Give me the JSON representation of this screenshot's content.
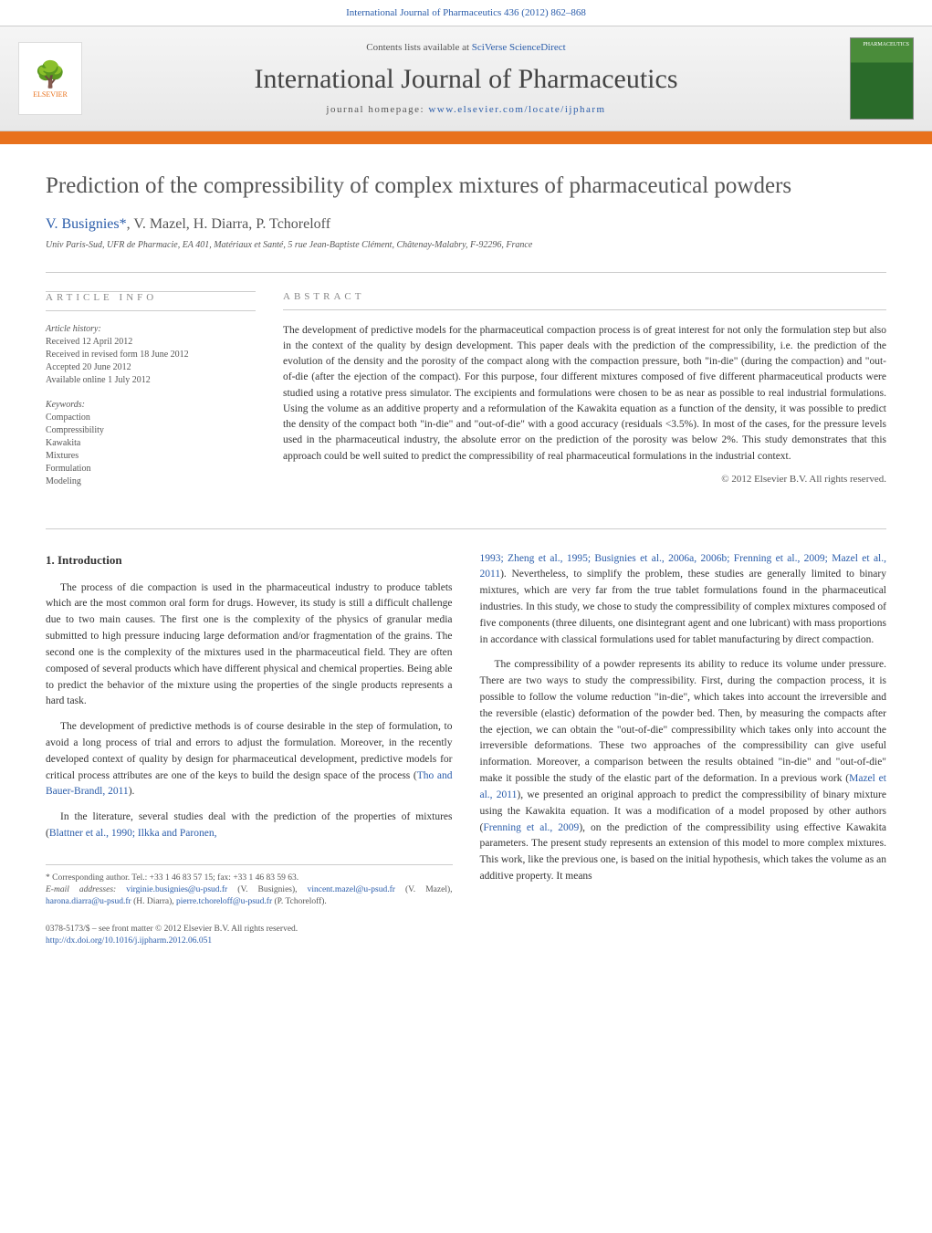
{
  "journal_ref": "International Journal of Pharmaceutics 436 (2012) 862–868",
  "contents_prefix": "Contents lists available at ",
  "contents_link": "SciVerse ScienceDirect",
  "journal_name": "International Journal of Pharmaceutics",
  "homepage_prefix": "journal homepage: ",
  "homepage_url": "www.elsevier.com/locate/ijpharm",
  "cover_text": "PHARMACEUTICS",
  "elsevier_label": "ELSEVIER",
  "article": {
    "title": "Prediction of the compressibility of complex mixtures of pharmaceutical powders",
    "authors_html": "V. Busignies",
    "author_marker": "*",
    "authors_rest": ", V. Mazel, H. Diarra, P. Tchoreloff",
    "affiliation": "Univ Paris-Sud, UFR de Pharmacie, EA 401, Matériaux et Santé, 5 rue Jean-Baptiste Clément, Châtenay-Malabry, F-92296, France"
  },
  "info": {
    "heading": "ARTICLE INFO",
    "history_label": "Article history:",
    "history": [
      "Received 12 April 2012",
      "Received in revised form 18 June 2012",
      "Accepted 20 June 2012",
      "Available online 1 July 2012"
    ],
    "keywords_label": "Keywords:",
    "keywords": [
      "Compaction",
      "Compressibility",
      "Kawakita",
      "Mixtures",
      "Formulation",
      "Modeling"
    ]
  },
  "abstract": {
    "heading": "ABSTRACT",
    "text": "The development of predictive models for the pharmaceutical compaction process is of great interest for not only the formulation step but also in the context of the quality by design development. This paper deals with the prediction of the compressibility, i.e. the prediction of the evolution of the density and the porosity of the compact along with the compaction pressure, both \"in-die\" (during the compaction) and \"out-of-die (after the ejection of the compact). For this purpose, four different mixtures composed of five different pharmaceutical products were studied using a rotative press simulator. The excipients and formulations were chosen to be as near as possible to real industrial formulations. Using the volume as an additive property and a reformulation of the Kawakita equation as a function of the density, it was possible to predict the density of the compact both \"in-die\" and \"out-of-die\" with a good accuracy (residuals <3.5%). In most of the cases, for the pressure levels used in the pharmaceutical industry, the absolute error on the prediction of the porosity was below 2%. This study demonstrates that this approach could be well suited to predict the compressibility of real pharmaceutical formulations in the industrial context.",
    "copyright": "© 2012 Elsevier B.V. All rights reserved."
  },
  "intro": {
    "heading": "1. Introduction",
    "p1": "The process of die compaction is used in the pharmaceutical industry to produce tablets which are the most common oral form for drugs. However, its study is still a difficult challenge due to two main causes. The first one is the complexity of the physics of granular media submitted to high pressure inducing large deformation and/or fragmentation of the grains. The second one is the complexity of the mixtures used in the pharmaceutical field. They are often composed of several products which have different physical and chemical properties. Being able to predict the behavior of the mixture using the properties of the single products represents a hard task.",
    "p2_a": "The development of predictive methods is of course desirable in the step of formulation, to avoid a long process of trial and errors to adjust the formulation. Moreover, in the recently developed context of quality by design for pharmaceutical development, predictive models for critical process attributes are one of the keys to build the design space of the process (",
    "p2_cite": "Tho and Bauer-Brandl, 2011",
    "p2_b": ").",
    "p3_a": "In the literature, several studies deal with the prediction of the properties of mixtures (",
    "p3_cite": "Blattner et al., 1990; Ilkka and Paronen,",
    "col2_cite": "1993; Zheng et al., 1995; Busignies et al., 2006a, 2006b; Frenning et al., 2009; Mazel et al., 2011",
    "col2_p1": "). Nevertheless, to simplify the problem, these studies are generally limited to binary mixtures, which are very far from the true tablet formulations found in the pharmaceutical industries. In this study, we chose to study the compressibility of complex mixtures composed of five components (three diluents, one disintegrant agent and one lubricant) with mass proportions in accordance with classical formulations used for tablet manufacturing by direct compaction.",
    "col2_p2_a": "The compressibility of a powder represents its ability to reduce its volume under pressure. There are two ways to study the compressibility. First, during the compaction process, it is possible to follow the volume reduction \"in-die\", which takes into account the irreversible and the reversible (elastic) deformation of the powder bed. Then, by measuring the compacts after the ejection, we can obtain the \"out-of-die\" compressibility which takes only into account the irreversible deformations. These two approaches of the compressibility can give useful information. Moreover, a comparison between the results obtained \"in-die\" and \"out-of-die\" make it possible the study of the elastic part of the deformation. In a previous work (",
    "col2_p2_cite1": "Mazel et al., 2011",
    "col2_p2_b": "), we presented an original approach to predict the compressibility of binary mixture using the Kawakita equation. It was a modification of a model proposed by other authors (",
    "col2_p2_cite2": "Frenning et al., 2009",
    "col2_p2_c": "), on the prediction of the compressibility using effective Kawakita parameters. The present study represents an extension of this model to more complex mixtures. This work, like the previous one, is based on the initial hypothesis, which takes the volume as an additive property. It means"
  },
  "footnotes": {
    "corr": "* Corresponding author. Tel.: +33 1 46 83 57 15; fax: +33 1 46 83 59 63.",
    "email_label": "E-mail addresses: ",
    "e1": "virginie.busignies@u-psud.fr",
    "e1_who": " (V. Busignies), ",
    "e2": "vincent.mazel@u-psud.fr",
    "e2_who": " (V. Mazel), ",
    "e3": "harona.diarra@u-psud.fr",
    "e3_who": " (H. Diarra), ",
    "e4": "pierre.tchoreloff@u-psud.fr",
    "e4_who": " (P. Tchoreloff)."
  },
  "footer": {
    "issn": "0378-5173/$ – see front matter © 2012 Elsevier B.V. All rights reserved.",
    "doi": "http://dx.doi.org/10.1016/j.ijpharm.2012.06.051"
  },
  "colors": {
    "accent": "#e8711c",
    "link": "#2a5caa",
    "text": "#333333",
    "muted": "#555555",
    "rule": "#cccccc",
    "background": "#ffffff"
  }
}
